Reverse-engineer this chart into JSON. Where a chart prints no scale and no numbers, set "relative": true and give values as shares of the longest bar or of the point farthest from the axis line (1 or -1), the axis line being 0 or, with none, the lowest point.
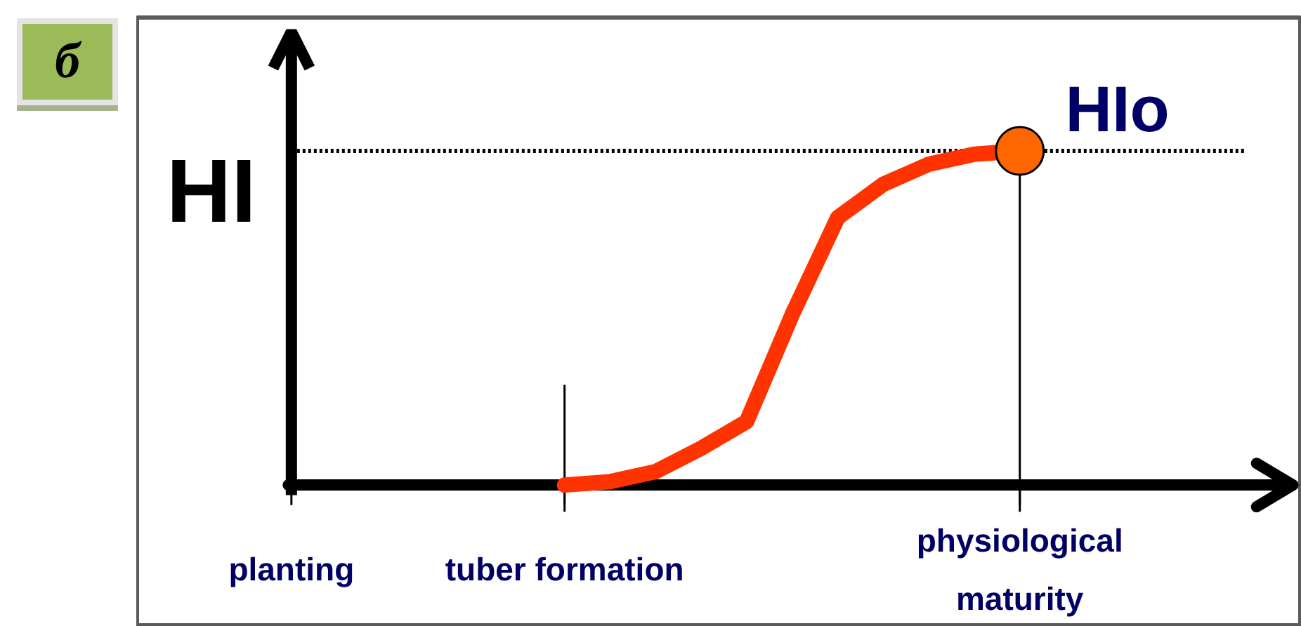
{
  "chart_data": {
    "type": "line",
    "relative": true,
    "title": "б",
    "ylabel": "HI",
    "categories": [
      "planting",
      null,
      null,
      null,
      null,
      null,
      "tuber formation",
      null,
      null,
      null,
      null,
      null,
      null,
      null,
      null,
      null,
      "physiological maturity"
    ],
    "series": [
      {
        "color": "#ff3300",
        "values": [
          null,
          null,
          null,
          null,
          null,
          null,
          0,
          0.01,
          0.04,
          0.11,
          0.19,
          0.51,
          0.8,
          0.9,
          0.96,
          0.99,
          1
        ]
      },
      {
        "type": "scatter",
        "color": "#ff6600",
        "marker": "circle",
        "values": [
          null,
          null,
          null,
          null,
          null,
          null,
          null,
          null,
          null,
          null,
          null,
          null,
          null,
          null,
          null,
          null,
          1
        ]
      }
    ],
    "ref_lines": [
      {
        "axis": "y",
        "value": 1,
        "label": "HIo",
        "line_style": "dotted",
        "color": "#000000"
      },
      {
        "axis": "x",
        "value": "tuber formation",
        "color": "#000000"
      },
      {
        "axis": "x",
        "value": "physiological maturity",
        "color": "#000000"
      }
    ]
  }
}
